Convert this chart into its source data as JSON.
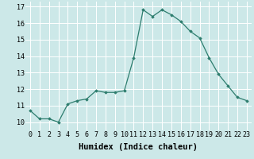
{
  "x": [
    0,
    1,
    2,
    3,
    4,
    5,
    6,
    7,
    8,
    9,
    10,
    11,
    12,
    13,
    14,
    15,
    16,
    17,
    18,
    19,
    20,
    21,
    22,
    23
  ],
  "y": [
    10.7,
    10.2,
    10.2,
    10.0,
    11.1,
    11.3,
    11.4,
    11.9,
    11.8,
    11.8,
    11.9,
    13.9,
    16.8,
    16.4,
    16.8,
    16.5,
    16.1,
    15.5,
    15.1,
    13.9,
    12.9,
    12.2,
    11.5,
    11.3
  ],
  "xlabel": "Humidex (Indice chaleur)",
  "xlim": [
    -0.5,
    23.5
  ],
  "ylim": [
    9.5,
    17.3
  ],
  "yticks": [
    10,
    11,
    12,
    13,
    14,
    15,
    16,
    17
  ],
  "xticks": [
    0,
    1,
    2,
    3,
    4,
    5,
    6,
    7,
    8,
    9,
    10,
    11,
    12,
    13,
    14,
    15,
    16,
    17,
    18,
    19,
    20,
    21,
    22,
    23
  ],
  "line_color": "#2d7d6e",
  "marker": "D",
  "marker_size": 1.8,
  "background_color": "#cce8e8",
  "grid_color": "#ffffff",
  "xlabel_fontsize": 7.5,
  "tick_fontsize": 6.0,
  "linewidth": 0.9
}
